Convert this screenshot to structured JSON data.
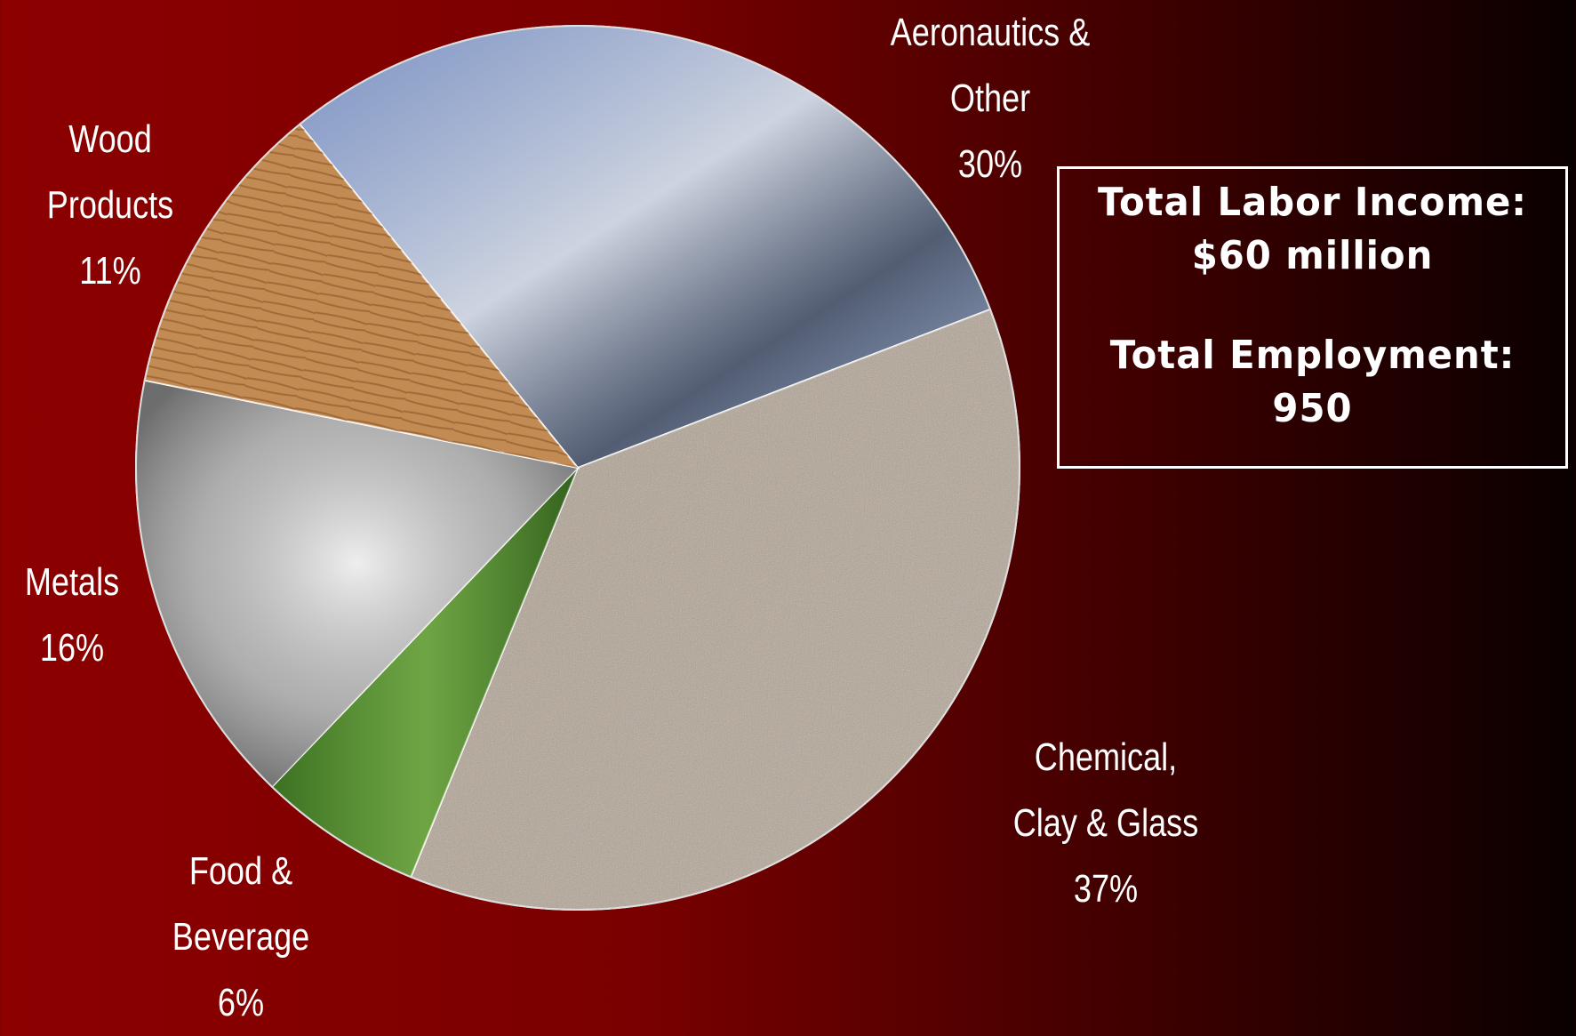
{
  "chart_data": {
    "type": "pie",
    "categories": [
      "Aeronautics &\nOther",
      "Chemical,\nClay & Glass",
      "Food &\nBeverage",
      "Metals",
      "Wood\nProducts"
    ],
    "values": [
      30,
      37,
      6,
      16,
      11
    ],
    "value_labels": [
      "30%",
      "37%",
      "6%",
      "16%",
      "11%"
    ],
    "colors": [
      "#8fa4c8",
      "#b2a393",
      "#4e8a2e",
      "#b8b8b8",
      "#c08a52"
    ],
    "annotations": [
      "Total Labor Income:",
      "$60 million",
      "Total Employment:",
      "950"
    ]
  }
}
